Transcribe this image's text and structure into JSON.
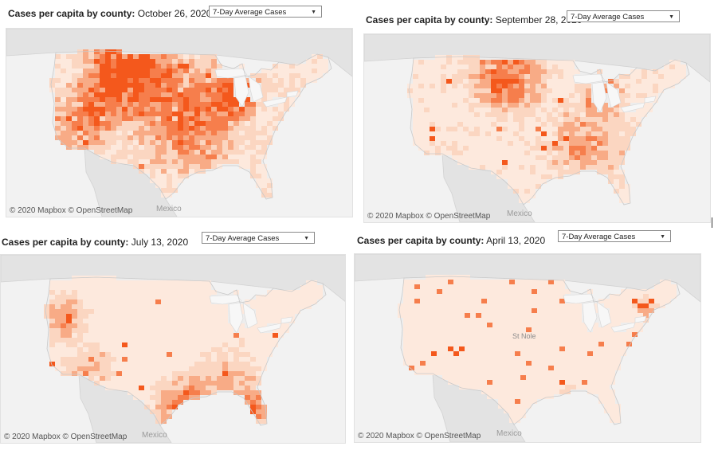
{
  "title_prefix": "Cases per capita by county:",
  "dropdown_value": "7-Day Average Cases",
  "attribution": "© 2020 Mapbox  © OpenStreetMap",
  "mexico_label": "Mexico",
  "colors": {
    "intense": "#f4581c",
    "high": "#f67e4c",
    "mid": "#f8ab86",
    "low": "#fbd6c1",
    "very_low": "#fde9dd",
    "land": "#e9e9e9",
    "water": "#ffffff",
    "border": "#cfcfcf"
  },
  "panels": [
    {
      "date": "October 26, 2020",
      "intensity": 0.95
    },
    {
      "date": "September 28, 2020",
      "intensity": 0.7
    },
    {
      "date": "July 13, 2020",
      "intensity": 0.5
    },
    {
      "date": "April 13, 2020",
      "intensity": 0.15
    }
  ],
  "april_city_label": "St Nole"
}
